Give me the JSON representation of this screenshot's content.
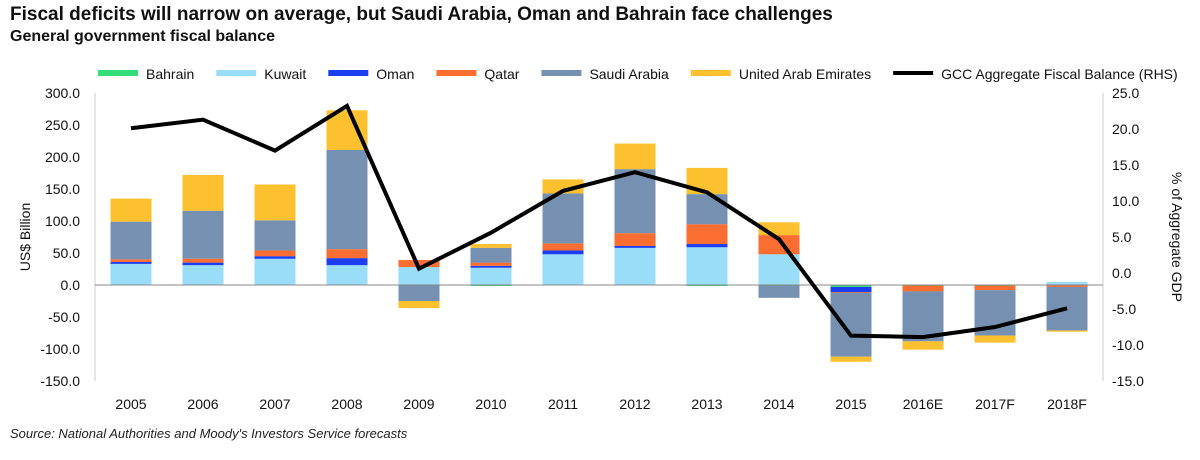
{
  "title": "Fiscal deficits will narrow on average, but Saudi Arabia, Oman and Bahrain face challenges",
  "subtitle": "General government fiscal balance",
  "source": "Source: National Authorities and Moody's Investors Service forecasts",
  "chart_data": {
    "type": "bar",
    "stacked": true,
    "categories": [
      "2005",
      "2006",
      "2007",
      "2008",
      "2009",
      "2010",
      "2011",
      "2012",
      "2013",
      "2014",
      "2015",
      "2016E",
      "2017F",
      "2018F"
    ],
    "ylabel": "US$ Billion",
    "y2label": "% of Aggregate GDP",
    "ylim": [
      -150,
      300
    ],
    "y2lim": [
      -15,
      25
    ],
    "yticks": [
      "300.0",
      "250.0",
      "200.0",
      "150.0",
      "100.0",
      "50.0",
      "0.0",
      "-50.0",
      "-100.0",
      "-150.0"
    ],
    "y2ticks": [
      "25.0",
      "20.0",
      "15.0",
      "10.0",
      "5.0",
      "0.0",
      "-5.0",
      "-10.0",
      "-15.0"
    ],
    "legend_position": "top",
    "series": [
      {
        "name": "Bahrain",
        "color": "#33dd77",
        "values": [
          0,
          0,
          0,
          0,
          0,
          -1,
          0,
          0,
          -1,
          -1,
          -3,
          -1,
          -1,
          0
        ]
      },
      {
        "name": "Kuwait",
        "color": "#99ddf8",
        "values": [
          33,
          31,
          41,
          31,
          28,
          27,
          48,
          58,
          59,
          48,
          0,
          0,
          0,
          5
        ]
      },
      {
        "name": "Oman",
        "color": "#1a3ef0",
        "values": [
          3,
          4,
          4,
          11,
          0,
          3,
          6,
          3,
          5,
          0,
          -8,
          0,
          0,
          0
        ]
      },
      {
        "name": "Qatar",
        "color": "#fb6e32",
        "values": [
          4,
          6,
          9,
          14,
          11,
          5,
          11,
          20,
          31,
          30,
          -1,
          -9,
          -7,
          -3
        ]
      },
      {
        "name": "Saudi Arabia",
        "color": "#7590b1",
        "values": [
          59,
          75,
          47,
          155,
          -25,
          23,
          78,
          100,
          47,
          -19,
          -100,
          -78,
          -71,
          -68
        ]
      },
      {
        "name": "United Arab Emirates",
        "color": "#fdc02f",
        "values": [
          36,
          56,
          56,
          62,
          -11,
          6,
          22,
          40,
          41,
          20,
          -8,
          -13,
          -11,
          -2
        ]
      }
    ],
    "line": {
      "name": "GCC Aggregate Fiscal Balance (RHS)",
      "color": "#000000",
      "axis": "right",
      "values": [
        20.1,
        21.3,
        17.0,
        23.2,
        0.6,
        5.6,
        11.4,
        14.0,
        11.2,
        4.7,
        -8.7,
        -8.9,
        -7.5,
        -4.9
      ]
    }
  }
}
